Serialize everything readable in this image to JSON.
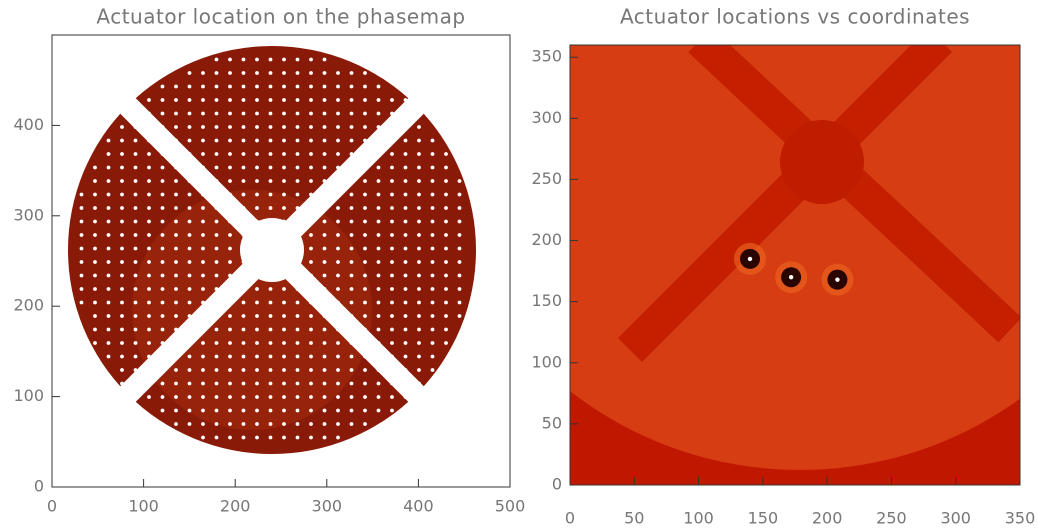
{
  "chart_data": [
    {
      "type": "image",
      "title": "Actuator location on the phasemap",
      "xlim": [
        0,
        500
      ],
      "ylim": [
        0,
        500
      ],
      "xticks": [
        0,
        100,
        200,
        300,
        400,
        500
      ],
      "yticks": [
        0,
        100,
        200,
        300,
        400
      ]
    },
    {
      "type": "scatter",
      "title": "Actuator locations vs coordinates",
      "x": [
        140,
        172,
        208
      ],
      "values": [
        185,
        170,
        168
      ],
      "xlim": [
        0,
        350
      ],
      "ylim": [
        0,
        360
      ],
      "xticks": [
        0,
        50,
        100,
        150,
        200,
        250,
        300,
        350
      ],
      "yticks": [
        0,
        50,
        100,
        150,
        200,
        250,
        300,
        350
      ]
    }
  ]
}
